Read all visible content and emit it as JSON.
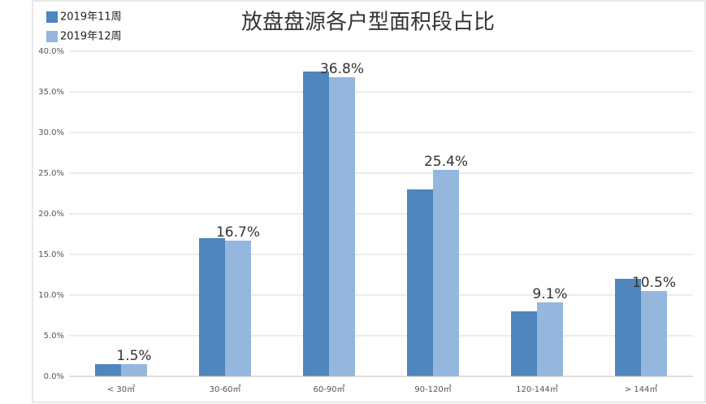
{
  "chart_data": {
    "type": "bar",
    "title": "放盘盘源各户型面积段占比",
    "categories": [
      "< 30㎡",
      "30-60㎡",
      "60-90㎡",
      "90-120㎡",
      "120-144㎡",
      "> 144㎡"
    ],
    "series": [
      {
        "name": "2019年11周",
        "color": "#4f86bd",
        "values": [
          1.5,
          17,
          37.5,
          23,
          8,
          12
        ]
      },
      {
        "name": "2019年12周",
        "color": "#95b7de",
        "values": [
          1.5,
          16.7,
          36.8,
          25.4,
          9.1,
          10.5
        ],
        "value_labels": [
          "1.5%",
          "16.7%",
          "36.8%",
          "25.4%",
          "9.1%",
          "10.5%"
        ]
      }
    ],
    "ylim": [
      0,
      40
    ],
    "yticks": [
      {
        "value": 0,
        "label": "0.0%"
      },
      {
        "value": 5,
        "label": "5.0%"
      },
      {
        "value": 10,
        "label": "10.0%"
      },
      {
        "value": 15,
        "label": "15.0%"
      },
      {
        "value": 20,
        "label": "20.0%"
      },
      {
        "value": 25,
        "label": "25.0%"
      },
      {
        "value": 30,
        "label": "30.0%"
      },
      {
        "value": 35,
        "label": "35.0%"
      },
      {
        "value": 40,
        "label": "40.0%"
      }
    ],
    "grid": true,
    "legend": "top-left"
  }
}
